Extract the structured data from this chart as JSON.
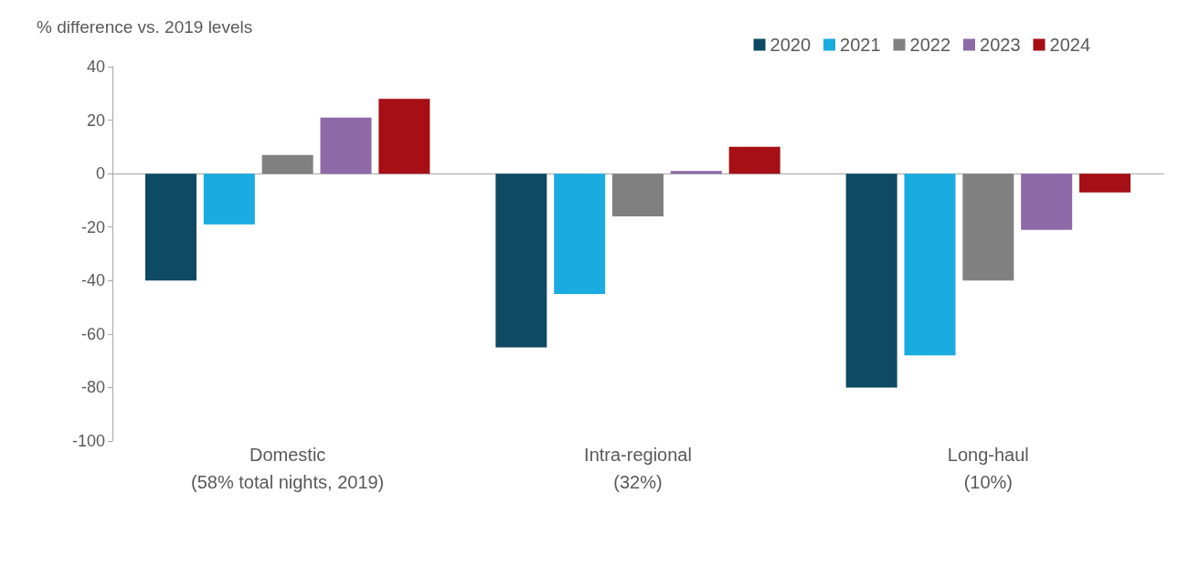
{
  "chart_data": {
    "type": "bar",
    "ylabel": "% difference vs. 2019 levels",
    "categories": [
      "Domestic\n(58% total nights, 2019)",
      "Intra-regional\n(32%)",
      "Long-haul\n(10%)"
    ],
    "series": [
      {
        "name": "2020",
        "color": "#0e4a63",
        "values": [
          -40,
          -65,
          -80
        ]
      },
      {
        "name": "2021",
        "color": "#1aabe0",
        "values": [
          -19,
          -45,
          -68
        ]
      },
      {
        "name": "2022",
        "color": "#808080",
        "values": [
          7,
          -16,
          -40
        ]
      },
      {
        "name": "2023",
        "color": "#8e69a8",
        "values": [
          21,
          1,
          -21
        ]
      },
      {
        "name": "2024",
        "color": "#a50f15",
        "values": [
          28,
          10,
          -7
        ]
      }
    ],
    "ylim": [
      -100,
      40
    ],
    "yticks": [
      -100,
      -80,
      -60,
      -40,
      -20,
      0,
      20,
      40
    ],
    "legend": "top right"
  }
}
